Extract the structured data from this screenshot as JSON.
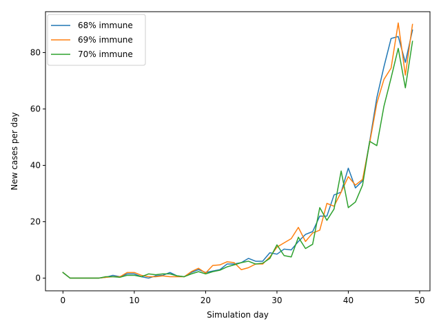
{
  "chart_data": {
    "type": "line",
    "title": "",
    "xlabel": "Simulation day",
    "ylabel": "New cases per day",
    "xlim": [
      -2.45,
      51.45
    ],
    "ylim": [
      -4.5,
      94.5
    ],
    "xticks": [
      0,
      10,
      20,
      30,
      40,
      50
    ],
    "yticks": [
      0,
      20,
      40,
      60,
      80
    ],
    "grid": false,
    "legend_position": "top-left",
    "x": [
      0,
      1,
      2,
      3,
      4,
      5,
      6,
      7,
      8,
      9,
      10,
      11,
      12,
      13,
      14,
      15,
      16,
      17,
      18,
      19,
      20,
      21,
      22,
      23,
      24,
      25,
      26,
      27,
      28,
      29,
      30,
      31,
      32,
      33,
      34,
      35,
      36,
      37,
      38,
      39,
      40,
      41,
      42,
      43,
      44,
      45,
      46,
      47,
      48,
      49
    ],
    "series": [
      {
        "name": "68% immune",
        "color": "#1f77b4",
        "values": [
          2,
          0,
          0,
          0,
          0,
          0,
          0.3,
          1,
          0.5,
          1.5,
          1.5,
          0.5,
          0,
          0.8,
          1,
          2,
          0.8,
          0.5,
          2,
          3,
          2,
          2.5,
          3,
          5,
          5,
          5.5,
          7,
          6,
          6,
          9,
          8.5,
          10.3,
          10,
          13,
          15.5,
          16.5,
          22,
          22,
          29.5,
          30.5,
          39,
          32,
          34.5,
          48.5,
          64,
          75,
          85,
          85.7,
          76.5,
          88
        ]
      },
      {
        "name": "69% immune",
        "color": "#ff7f0e",
        "values": [
          2,
          0,
          0,
          0,
          0,
          0,
          0.3,
          0.5,
          0.5,
          2,
          2,
          1,
          0.5,
          0.5,
          0.8,
          0.5,
          0.5,
          0.5,
          2.3,
          3.5,
          1.8,
          4.5,
          4.7,
          5.8,
          5.5,
          3,
          3.7,
          5,
          5,
          7.5,
          11,
          12.5,
          14,
          18,
          13,
          16,
          17,
          26.5,
          25.5,
          30.5,
          36,
          33,
          35,
          48,
          62,
          70.5,
          74.5,
          90.5,
          72,
          90
        ]
      },
      {
        "name": "70% immune",
        "color": "#2ca02c",
        "values": [
          2,
          0,
          0,
          0,
          0,
          0,
          0.5,
          0.5,
          0.3,
          1,
          1,
          0.5,
          1.5,
          1.2,
          1.5,
          1.5,
          0.8,
          0.5,
          1.5,
          2.3,
          1.5,
          2.3,
          2.8,
          4,
          4.7,
          5.5,
          6,
          5,
          5.3,
          7,
          11.8,
          8,
          7.5,
          14.5,
          10.5,
          12,
          25,
          20.5,
          24.5,
          38,
          25,
          27,
          33,
          48.5,
          47,
          61,
          71,
          81.5,
          67.5,
          84
        ]
      }
    ]
  }
}
